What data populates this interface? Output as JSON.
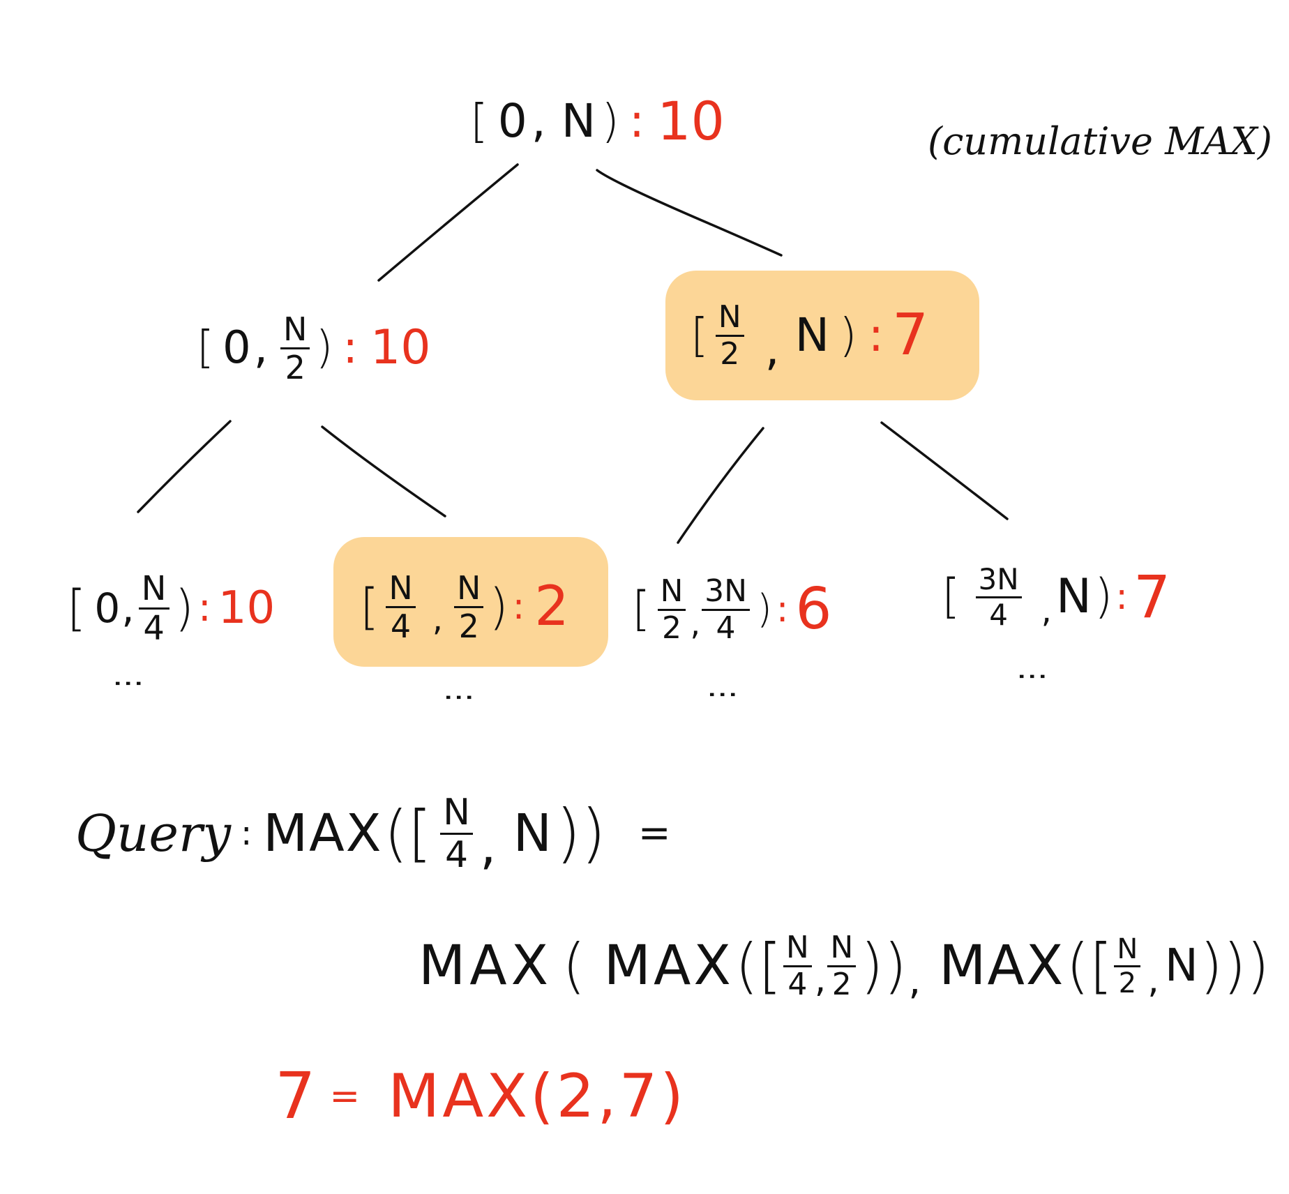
{
  "colors": {
    "ink": "#111111",
    "value": "#e8321e",
    "highlight": "#fcd697"
  },
  "note": "(cumulative MAX)",
  "tree": {
    "root": {
      "open": "[",
      "left": "0",
      "comma": ",",
      "right": "N",
      "close": ")",
      "colon": ":",
      "value": "10"
    },
    "level1": [
      {
        "open": "[",
        "left": "0",
        "comma": ",",
        "right_num": "N",
        "right_den": "2",
        "close": ")",
        "colon": ":",
        "value": "10"
      },
      {
        "open": "[",
        "left_num": "N",
        "left_den": "2",
        "comma": ",",
        "right": "N",
        "close": ")",
        "colon": ":",
        "value": "7",
        "highlighted": true
      }
    ],
    "level2": [
      {
        "open": "[",
        "left": "0",
        "comma": ",",
        "right_num": "N",
        "right_den": "4",
        "close": ")",
        "colon": ":",
        "value": "10"
      },
      {
        "open": "[",
        "left_num": "N",
        "left_den": "4",
        "comma": ",",
        "right_num": "N",
        "right_den": "2",
        "close": ")",
        "colon": ":",
        "value": "2",
        "highlighted": true
      },
      {
        "open": "[",
        "left_num": "N",
        "left_den": "2",
        "comma": ",",
        "right_num": "3N",
        "right_den": "4",
        "close": ")",
        "colon": ":",
        "value": "6"
      },
      {
        "open": "[",
        "left_num": "3N",
        "left_den": "4",
        "comma": ",",
        "right": "N",
        "close": ")",
        "colon": ":",
        "value": "7"
      }
    ],
    "ellipsis": "⋮"
  },
  "query": {
    "label": "Query",
    "colon": ":",
    "lhs": {
      "fn": "MAX",
      "open": "([",
      "left_num": "N",
      "left_den": "4",
      "comma": ",",
      "right": "N",
      "close": "))"
    },
    "equals": "=",
    "rhs": {
      "outer_fn": "MAX",
      "outer_open": "(",
      "a_fn": "MAX",
      "a_open": "([",
      "a_left_num": "N",
      "a_left_den": "4",
      "a_comma": ",",
      "a_right_num": "N",
      "a_right_den": "2",
      "a_close": "))",
      "mid_comma": ",",
      "b_fn": "MAX",
      "b_open": "([",
      "b_left_num": "N",
      "b_left_den": "2",
      "b_comma": ",",
      "b_right": "N",
      "b_close": ")))"
    },
    "result": {
      "value": "7",
      "equals": "=",
      "expr": "MAX(2,7)"
    }
  }
}
